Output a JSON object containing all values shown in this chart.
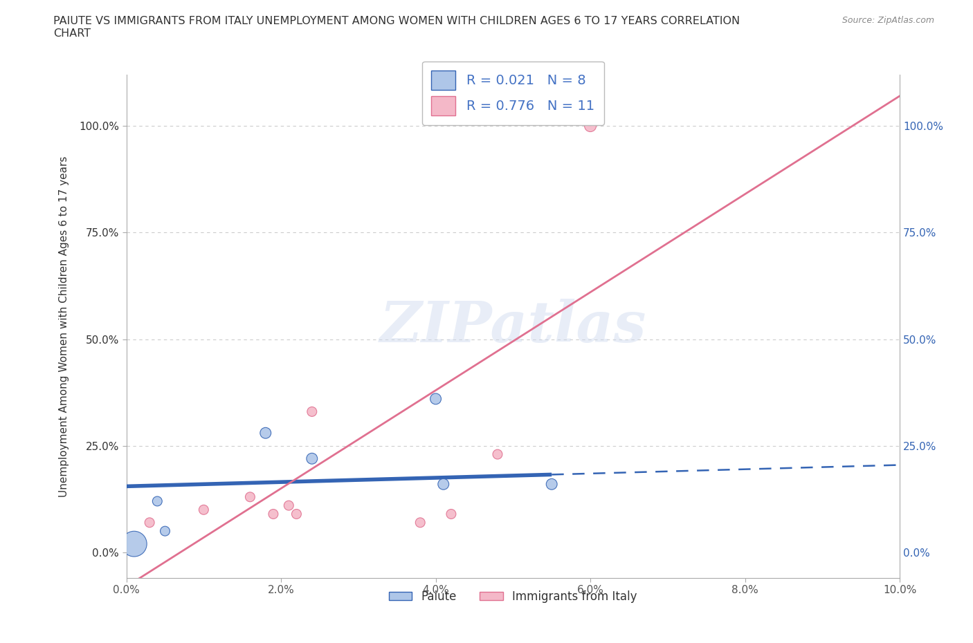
{
  "title": "PAIUTE VS IMMIGRANTS FROM ITALY UNEMPLOYMENT AMONG WOMEN WITH CHILDREN AGES 6 TO 17 YEARS CORRELATION\nCHART",
  "source": "Source: ZipAtlas.com",
  "xlabel": "",
  "ylabel": "Unemployment Among Women with Children Ages 6 to 17 years",
  "watermark": "ZIPatlas",
  "paiute_x": [
    0.001,
    0.004,
    0.005,
    0.018,
    0.024,
    0.04,
    0.041,
    0.055
  ],
  "paiute_y": [
    0.02,
    0.12,
    0.05,
    0.28,
    0.22,
    0.36,
    0.16,
    0.16
  ],
  "paiute_size": [
    700,
    100,
    100,
    130,
    130,
    130,
    130,
    130
  ],
  "italy_x": [
    0.003,
    0.01,
    0.016,
    0.019,
    0.021,
    0.022,
    0.024,
    0.038,
    0.042,
    0.048,
    0.06
  ],
  "italy_y": [
    0.07,
    0.1,
    0.13,
    0.09,
    0.11,
    0.09,
    0.33,
    0.07,
    0.09,
    0.23,
    1.0
  ],
  "italy_size": [
    100,
    100,
    100,
    100,
    100,
    100,
    100,
    100,
    100,
    100,
    150
  ],
  "paiute_color": "#aec6e8",
  "italy_color": "#f4b8c8",
  "paiute_line_color": "#3464b4",
  "italy_line_color": "#e07090",
  "R_paiute": 0.021,
  "N_paiute": 8,
  "R_italy": 0.776,
  "N_italy": 11,
  "xlim": [
    0.0,
    0.1
  ],
  "ylim": [
    -0.06,
    1.12
  ],
  "xticks": [
    0.0,
    0.02,
    0.04,
    0.06,
    0.08,
    0.1
  ],
  "xtick_labels": [
    "0.0%",
    "2.0%",
    "4.0%",
    "6.0%",
    "8.0%",
    "10.0%"
  ],
  "yticks": [
    0.0,
    0.25,
    0.5,
    0.75,
    1.0
  ],
  "ytick_labels": [
    "0.0%",
    "25.0%",
    "50.0%",
    "75.0%",
    "100.0%"
  ],
  "grid_color": "#cccccc",
  "background_color": "#ffffff",
  "legend_color_text": "#4472c4",
  "axis_label_color": "#555555",
  "paiute_line_y_intercept": 0.155,
  "paiute_line_slope": 0.5,
  "italy_line_y_intercept": -0.08,
  "italy_line_slope": 11.5
}
